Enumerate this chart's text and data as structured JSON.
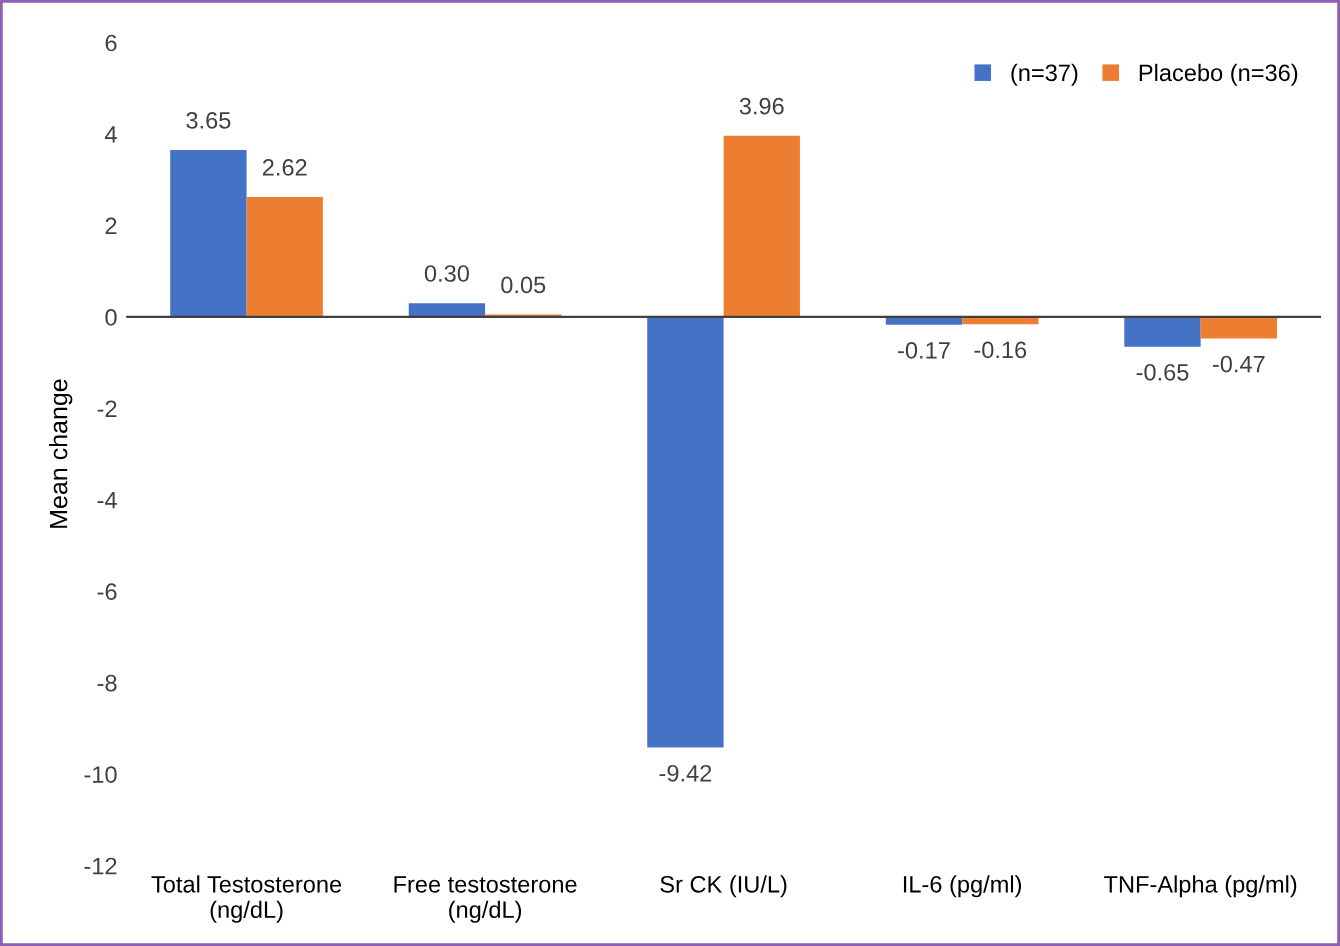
{
  "chart_data": {
    "type": "bar",
    "ylabel": "Mean change",
    "categories": [
      "Total Testosterone\n(ng/dL)",
      "Free testosterone\n(ng/dL)",
      "Sr CK (IU/L)",
      "IL-6 (pg/ml)",
      "TNF-Alpha (pg/ml)"
    ],
    "series": [
      {
        "name": "(n=37)",
        "color": "#4472c4",
        "values": [
          3.65,
          0.3,
          -9.42,
          -0.17,
          -0.65
        ],
        "value_labels": [
          "3.65",
          "0.30",
          "-9.42",
          "-0.17",
          "-0.65"
        ]
      },
      {
        "name": "Placebo (n=36)",
        "color": "#ed7d31",
        "values": [
          2.62,
          0.05,
          3.96,
          -0.16,
          -0.47
        ],
        "value_labels": [
          "2.62",
          "0.05",
          "3.96",
          "-0.16",
          "-0.47"
        ]
      }
    ],
    "ylim": [
      -12,
      6
    ],
    "yticks": [
      -12,
      -10,
      -8,
      -6,
      -4,
      -2,
      0,
      2,
      4,
      6
    ],
    "legend": "top right"
  }
}
